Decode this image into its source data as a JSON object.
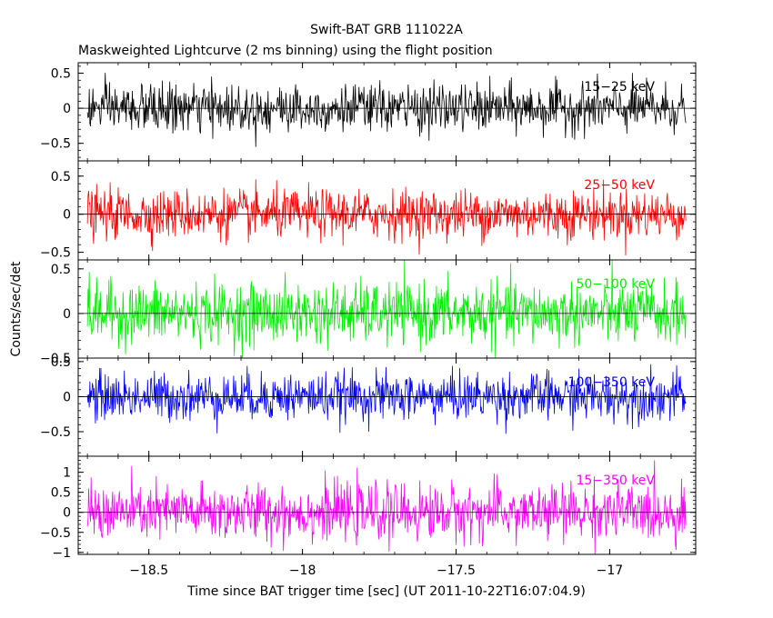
{
  "chart_data": {
    "type": "line",
    "title": "Swift-BAT GRB 111022A",
    "subtitle": "Maskweighted Lightcurve (2 ms binning) using the flight position",
    "xlabel": "Time since BAT trigger time [sec] (UT 2011-10-22T16:07:04.9)",
    "ylabel": "Counts/sec/det",
    "xlim": [
      -18.73,
      -16.72
    ],
    "x_ticks": [
      -18.5,
      -18,
      -17.5,
      -17
    ],
    "x_tick_labels": [
      "−18.5",
      "−18",
      "−17.5",
      "−17"
    ],
    "grid": false,
    "legend": "none",
    "binning_sec": 0.002,
    "x_range": [
      -18.7,
      -16.75
    ],
    "panels": [
      {
        "label": "15−25 keV",
        "color": "#000000",
        "ylim": [
          -0.75,
          0.65
        ],
        "y_ticks": [
          -0.5,
          0,
          0.5
        ],
        "y_tick_labels": [
          "−0.5",
          "0",
          "0.5"
        ],
        "noise_sigma": 0.17,
        "min": -0.65,
        "max": 0.62
      },
      {
        "label": "25−50 keV",
        "color": "#ff0000",
        "ylim": [
          -0.6,
          0.7
        ],
        "y_ticks": [
          -0.5,
          0,
          0.5
        ],
        "y_tick_labels": [
          "−0.5",
          "0",
          "0.5"
        ],
        "noise_sigma": 0.16,
        "min": -0.6,
        "max": 0.6
      },
      {
        "label": "50−100 keV",
        "color": "#00ee00",
        "ylim": [
          -0.5,
          0.6
        ],
        "y_ticks": [
          -0.5,
          0,
          0.5
        ],
        "y_tick_labels": [
          "−0.5",
          "0",
          "0.5"
        ],
        "noise_sigma": 0.17,
        "min": -0.5,
        "max": 0.6
      },
      {
        "label": "100−350 keV",
        "color": "#0000ff",
        "ylim": [
          -0.85,
          0.55
        ],
        "y_ticks": [
          -0.5,
          0,
          0.5
        ],
        "y_tick_labels": [
          "−0.5",
          "0",
          "0.5"
        ],
        "noise_sigma": 0.17,
        "min": -0.85,
        "max": 0.55
      },
      {
        "label": "15−350 keV",
        "color": "#ff00ff",
        "ylim": [
          -1.05,
          1.4
        ],
        "y_ticks": [
          -1,
          -0.5,
          0,
          0.5,
          1
        ],
        "y_tick_labels": [
          "−1",
          "−0.5",
          "0",
          "0.5",
          "1"
        ],
        "noise_sigma": 0.35,
        "min": -1.05,
        "max": 1.3
      }
    ]
  }
}
